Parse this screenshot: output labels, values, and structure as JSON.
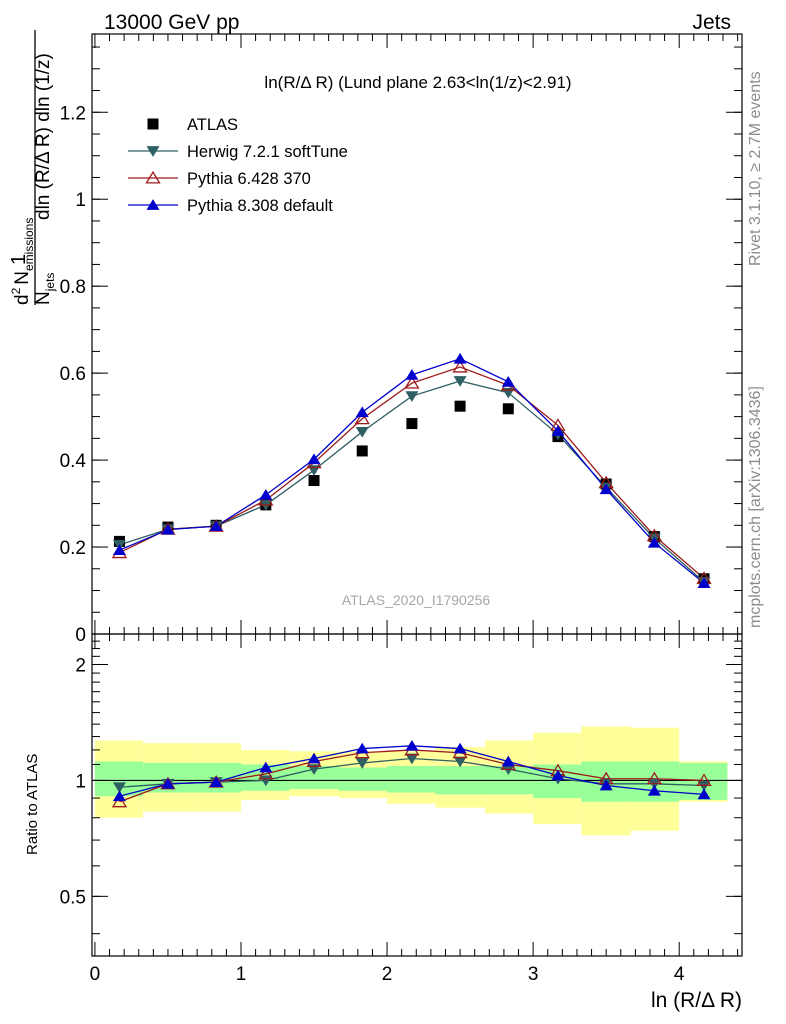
{
  "header": {
    "left": "13000 GeV pp",
    "right": "Jets",
    "plot_title": "ln(R/Δ R) (Lund plane 2.63<ln(1/z)<2.91)",
    "watermark": "ATLAS_2020_I1790256",
    "side_rivet": "Rivet 3.1.10, ≥ 2.7M events",
    "side_mcplots": "mcplots.cern.ch [arXiv:1306.3436]"
  },
  "axes": {
    "ylabel_main": "1/N_jets d² N_emissions/dln (R/Δ R) dln (1/z)",
    "ylabel_main_parts": {
      "one": "1",
      "d2": "d",
      "sup2": "2",
      "N": "N",
      "emissions": "emissions",
      "rest_num": "dln (R/Δ R) dln (1/z)",
      "Njets": "N",
      "jets": "jets",
      "dln": "dln (R/Δ R)"
    },
    "ylabel_ratio": "Ratio to ATLAS",
    "xlabel": "ln (R/Δ R)"
  },
  "chart_data": [
    {
      "type": "scatter",
      "panel": "main",
      "x": [
        0.168,
        0.5,
        0.83,
        1.17,
        1.5,
        1.83,
        2.17,
        2.5,
        2.83,
        3.17,
        3.5,
        3.83,
        4.17
      ],
      "xlim": [
        -0.02,
        4.43
      ],
      "ylim": [
        0,
        1.38
      ],
      "yticks": [
        0,
        0.2,
        0.4,
        0.6,
        0.8,
        1,
        1.2
      ],
      "ytick_labels": [
        "0",
        "0.2",
        "0.4",
        "0.6",
        "0.8",
        "1",
        "1.2"
      ],
      "xticks": [
        0,
        1,
        2,
        3,
        4
      ],
      "legend_position": "top-left",
      "series": [
        {
          "name": "ATLAS",
          "marker": "square",
          "color": "#000000",
          "values": [
            0.213,
            0.246,
            0.25,
            0.297,
            0.353,
            0.421,
            0.484,
            0.524,
            0.518,
            0.454,
            0.345,
            0.224,
            0.127
          ]
        },
        {
          "name": "Herwig 7.2.1 softTune",
          "marker": "triangle-down",
          "color": "#2e5f63",
          "values": [
            0.205,
            0.241,
            0.248,
            0.297,
            0.377,
            0.465,
            0.547,
            0.582,
            0.555,
            0.459,
            0.337,
            0.22,
            0.12
          ]
        },
        {
          "name": "Pythia 6.428 370",
          "marker": "triangle-up-open",
          "color": "#9e1b1b",
          "values": [
            0.187,
            0.241,
            0.248,
            0.308,
            0.394,
            0.495,
            0.577,
            0.614,
            0.572,
            0.48,
            0.348,
            0.226,
            0.128
          ]
        },
        {
          "name": "Pythia 8.308 default",
          "marker": "triangle-up",
          "color": "#0000cc",
          "values": [
            0.193,
            0.24,
            0.248,
            0.32,
            0.402,
            0.51,
            0.596,
            0.633,
            0.58,
            0.467,
            0.333,
            0.21,
            0.117
          ]
        }
      ]
    },
    {
      "type": "scatter",
      "panel": "ratio",
      "x": [
        0.168,
        0.5,
        0.83,
        1.17,
        1.5,
        1.83,
        2.17,
        2.5,
        2.83,
        3.17,
        3.5,
        3.83,
        4.17
      ],
      "xlim": [
        -0.02,
        4.43
      ],
      "ylim": [
        0.35,
        2.4
      ],
      "yticks": [
        0.5,
        1,
        2
      ],
      "ytick_labels": [
        "0.5",
        "1",
        "2"
      ],
      "xticks": [
        0,
        1,
        2,
        3,
        4
      ],
      "xtick_labels": [
        "0",
        "1",
        "2",
        "3",
        "4"
      ],
      "reference_line": 1,
      "bands": {
        "edges": [
          0,
          0.33,
          0.67,
          1,
          1.33,
          1.67,
          2,
          2.33,
          2.67,
          3,
          3.33,
          3.67,
          4,
          4.33
        ],
        "inner": {
          "color": "#99ff99",
          "low": [
            0.91,
            0.93,
            0.93,
            0.94,
            0.95,
            0.94,
            0.93,
            0.92,
            0.92,
            0.9,
            0.88,
            0.88,
            0.89
          ],
          "high": [
            1.12,
            1.11,
            1.11,
            1.1,
            1.09,
            1.08,
            1.09,
            1.09,
            1.09,
            1.1,
            1.12,
            1.12,
            1.11
          ]
        },
        "outer": {
          "color": "#ffff99",
          "low": [
            0.8,
            0.83,
            0.83,
            0.89,
            0.91,
            0.9,
            0.87,
            0.85,
            0.82,
            0.77,
            0.72,
            0.74,
            0.88
          ],
          "high": [
            1.27,
            1.25,
            1.25,
            1.2,
            1.19,
            1.19,
            1.19,
            1.22,
            1.27,
            1.33,
            1.38,
            1.37,
            1.12
          ]
        }
      },
      "series": [
        {
          "name": "Herwig 7.2.1 softTune",
          "marker": "triangle-down",
          "color": "#2e5f63",
          "values": [
            0.96,
            0.98,
            0.99,
            1.0,
            1.07,
            1.11,
            1.14,
            1.12,
            1.07,
            1.01,
            0.98,
            0.98,
            0.97
          ]
        },
        {
          "name": "Pythia 6.428 370",
          "marker": "triangle-up-open",
          "color": "#9e1b1b",
          "values": [
            0.88,
            0.98,
            0.99,
            1.04,
            1.12,
            1.18,
            1.2,
            1.18,
            1.1,
            1.06,
            1.01,
            1.01,
            1.0
          ]
        },
        {
          "name": "Pythia 8.308 default",
          "marker": "triangle-up",
          "color": "#0000cc",
          "values": [
            0.91,
            0.98,
            0.99,
            1.08,
            1.14,
            1.21,
            1.23,
            1.21,
            1.12,
            1.03,
            0.97,
            0.94,
            0.92
          ]
        }
      ]
    }
  ]
}
